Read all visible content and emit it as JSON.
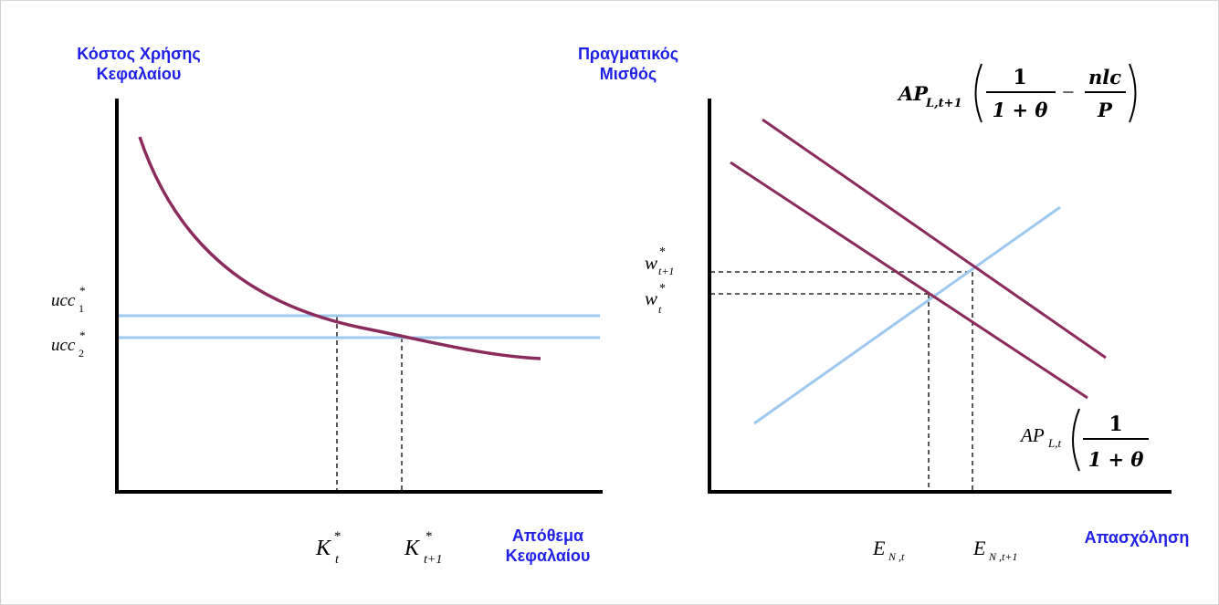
{
  "left_panel": {
    "y_axis_title_line1": "Κόστος Χρήσης",
    "y_axis_title_line2": "Κεφαλαίου",
    "x_axis_title_line1": "Απόθεμα",
    "x_axis_title_line2": "Κεφαλαίου",
    "ucc1": {
      "base": "ucc",
      "sub": "1",
      "sup": "*"
    },
    "ucc2": {
      "base": "ucc",
      "sub": "2",
      "sup": "*"
    },
    "k_t": {
      "base": "K",
      "sub": "t",
      "sup": "*"
    },
    "k_t1": {
      "base": "K",
      "sub": "t+1",
      "sup": "*"
    }
  },
  "right_panel": {
    "y_axis_title_line1": "Πραγματικός",
    "y_axis_title_line2": "Μισθός",
    "x_axis_title": "Απασχόληση",
    "w_t1": {
      "base": "w",
      "sub": "t+1",
      "sup": "*"
    },
    "w_t": {
      "base": "w",
      "sub": "t",
      "sup": "*"
    },
    "e_t": {
      "base": "E",
      "sub": "N ,t"
    },
    "e_t1": {
      "base": "E",
      "sub": "N ,t+1"
    },
    "formula_top": {
      "ap": "AP",
      "sub": "L,t+1",
      "one": "1",
      "den": "1 + θ",
      "minus": "−",
      "num2": "nlc",
      "den2": "P"
    },
    "formula_bottom": {
      "ap": "AP",
      "sub": "L,t",
      "one": "1",
      "den": "1 + θ"
    }
  },
  "colors": {
    "curve": "#8b2a5c",
    "supply": "#9dc8f0",
    "axis": "#000000",
    "label_blue": "#1f1fe6"
  }
}
